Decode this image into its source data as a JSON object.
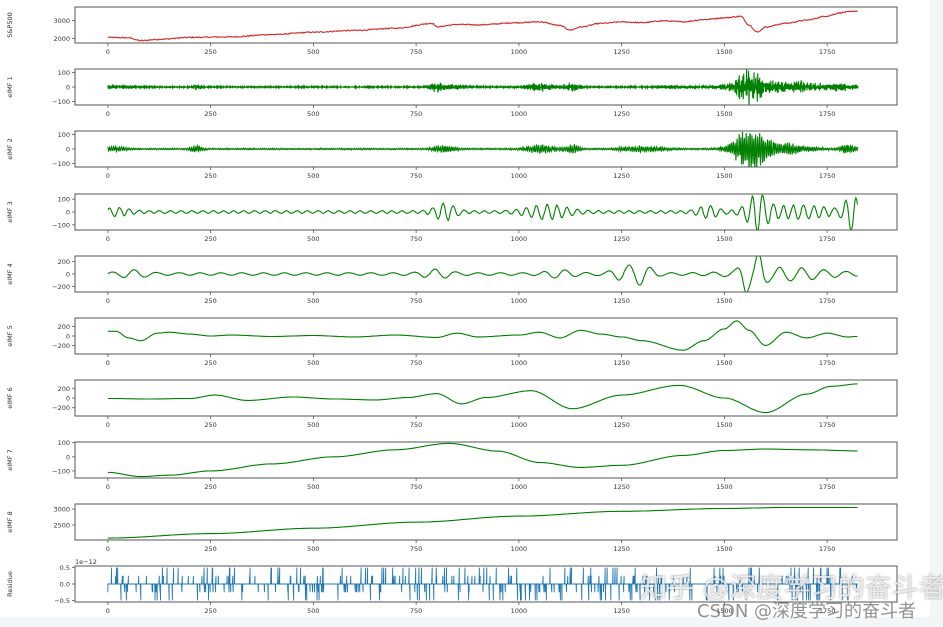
{
  "chart_data": [
    {
      "type": "line",
      "ylabel": "S&P500",
      "color": "#d62728",
      "xlim": [
        -80,
        1920
      ],
      "ylim": [
        1750,
        3750
      ],
      "yticks": [
        2000,
        3000
      ],
      "ytick_labels": [
        "2000",
        "3000"
      ],
      "xticks": [
        0,
        250,
        500,
        750,
        1000,
        1250,
        1500,
        1750
      ],
      "kind": "price",
      "x": [
        0,
        50,
        80,
        120,
        200,
        300,
        400,
        500,
        600,
        700,
        790,
        800,
        850,
        900,
        1000,
        1050,
        1100,
        1125,
        1150,
        1200,
        1250,
        1300,
        1350,
        1400,
        1450,
        1500,
        1540,
        1560,
        1580,
        1600,
        1650,
        1700,
        1750,
        1780,
        1800,
        1825
      ],
      "y": [
        2060,
        2040,
        1880,
        1950,
        2060,
        2090,
        2220,
        2350,
        2450,
        2570,
        2840,
        2650,
        2780,
        2760,
        2880,
        2930,
        2720,
        2470,
        2640,
        2840,
        2920,
        2880,
        2980,
        2930,
        3050,
        3150,
        3230,
        2750,
        2350,
        2640,
        2850,
        3020,
        3250,
        3420,
        3480,
        3530
      ]
    },
    {
      "type": "line",
      "ylabel": "eIMF 1",
      "color": "#008000",
      "xlim": [
        -80,
        1920
      ],
      "ylim": [
        -125,
        125
      ],
      "yticks": [
        -100,
        0,
        100
      ],
      "ytick_labels": [
        "−100",
        "0",
        "100"
      ],
      "xticks": [
        0,
        250,
        500,
        750,
        1000,
        1250,
        1500,
        1750
      ],
      "kind": "noise",
      "freq": 0.9,
      "base_amp": 6,
      "bursts": [
        [
          20,
          60,
          12
        ],
        [
          215,
          10,
          18
        ],
        [
          800,
          15,
          30
        ],
        [
          840,
          40,
          15
        ],
        [
          1050,
          40,
          30
        ],
        [
          1130,
          20,
          35
        ],
        [
          1380,
          40,
          12
        ],
        [
          1560,
          30,
          100
        ],
        [
          1600,
          100,
          40
        ],
        [
          1690,
          20,
          30
        ],
        [
          1770,
          60,
          25
        ]
      ]
    },
    {
      "type": "line",
      "ylabel": "eIMF 2",
      "color": "#008000",
      "xlim": [
        -80,
        1920
      ],
      "ylim": [
        -125,
        125
      ],
      "yticks": [
        -100,
        0,
        100
      ],
      "ytick_labels": [
        "−100",
        "0",
        "100"
      ],
      "xticks": [
        0,
        250,
        500,
        750,
        1000,
        1250,
        1500,
        1750
      ],
      "kind": "noise",
      "freq": 0.45,
      "base_amp": 6,
      "bursts": [
        [
          20,
          30,
          15
        ],
        [
          215,
          15,
          25
        ],
        [
          820,
          30,
          25
        ],
        [
          1050,
          40,
          30
        ],
        [
          1130,
          20,
          35
        ],
        [
          1300,
          60,
          20
        ],
        [
          1560,
          40,
          120
        ],
        [
          1620,
          80,
          50
        ],
        [
          1800,
          20,
          35
        ]
      ]
    },
    {
      "type": "line",
      "ylabel": "eIMF 3",
      "color": "#008000",
      "xlim": [
        -80,
        1920
      ],
      "ylim": [
        -140,
        140
      ],
      "yticks": [
        -100,
        0,
        100
      ],
      "ytick_labels": [
        "−100",
        "0",
        "100"
      ],
      "xticks": [
        0,
        250,
        500,
        750,
        1000,
        1250,
        1500,
        1750
      ],
      "kind": "wave",
      "freq": 0.25,
      "base_amp": 10,
      "bursts": [
        [
          20,
          40,
          25
        ],
        [
          820,
          30,
          60
        ],
        [
          1070,
          60,
          50
        ],
        [
          1460,
          30,
          40
        ],
        [
          1580,
          30,
          120
        ],
        [
          1680,
          100,
          45
        ],
        [
          1810,
          20,
          120
        ]
      ]
    },
    {
      "type": "line",
      "ylabel": "eIMF 4",
      "color": "#008000",
      "xlim": [
        -80,
        1920
      ],
      "ylim": [
        -290,
        290
      ],
      "yticks": [
        -200,
        0,
        200
      ],
      "ytick_labels": [
        "−200",
        "0",
        "200"
      ],
      "xticks": [
        0,
        250,
        500,
        750,
        1000,
        1250,
        1500,
        1750
      ],
      "kind": "wave",
      "freq": 0.12,
      "base_amp": 20,
      "bursts": [
        [
          60,
          40,
          50
        ],
        [
          800,
          40,
          60
        ],
        [
          1100,
          40,
          50
        ],
        [
          1260,
          40,
          90
        ],
        [
          1300,
          30,
          120
        ],
        [
          1550,
          15,
          250
        ],
        [
          1585,
          15,
          260
        ],
        [
          1650,
          120,
          90
        ]
      ]
    },
    {
      "type": "line",
      "ylabel": "eIMF 5",
      "color": "#008000",
      "xlim": [
        -80,
        1920
      ],
      "ylim": [
        -380,
        380
      ],
      "yticks": [
        -200,
        0,
        200
      ],
      "ytick_labels": [
        "−200",
        "0",
        "200"
      ],
      "xticks": [
        0,
        250,
        500,
        750,
        1000,
        1250,
        1500,
        1750
      ],
      "kind": "points",
      "x": [
        0,
        20,
        50,
        80,
        120,
        150,
        200,
        250,
        300,
        400,
        500,
        600,
        700,
        800,
        850,
        900,
        1000,
        1050,
        1100,
        1150,
        1200,
        1250,
        1300,
        1400,
        1450,
        1500,
        1530,
        1560,
        1600,
        1650,
        1700,
        1750,
        1800,
        1825
      ],
      "y": [
        100,
        100,
        -40,
        -100,
        60,
        80,
        40,
        0,
        20,
        -10,
        10,
        -20,
        20,
        -30,
        60,
        -20,
        20,
        80,
        -40,
        120,
        40,
        -20,
        -100,
        -300,
        -100,
        150,
        320,
        120,
        -200,
        80,
        -40,
        60,
        -20,
        -10
      ]
    },
    {
      "type": "line",
      "ylabel": "eIMF 6",
      "color": "#008000",
      "xlim": [
        -80,
        1920
      ],
      "ylim": [
        -370,
        370
      ],
      "yticks": [
        -200,
        0,
        200
      ],
      "ytick_labels": [
        "−200",
        "0",
        "200"
      ],
      "xticks": [
        0,
        250,
        500,
        750,
        1000,
        1250,
        1500,
        1750
      ],
      "kind": "points",
      "x": [
        0,
        100,
        200,
        260,
        340,
        450,
        550,
        650,
        730,
        800,
        860,
        920,
        1030,
        1130,
        1250,
        1390,
        1500,
        1600,
        1700,
        1760,
        1825
      ],
      "y": [
        -10,
        -20,
        -10,
        60,
        -50,
        20,
        -20,
        -40,
        10,
        90,
        -120,
        10,
        150,
        -220,
        60,
        260,
        0,
        -300,
        80,
        240,
        290
      ]
    },
    {
      "type": "line",
      "ylabel": "eIMF 7",
      "color": "#008000",
      "xlim": [
        -80,
        1920
      ],
      "ylim": [
        -150,
        105
      ],
      "yticks": [
        -100,
        0,
        100
      ],
      "ytick_labels": [
        "−100",
        "0",
        "100"
      ],
      "xticks": [
        0,
        250,
        500,
        750,
        1000,
        1250,
        1500,
        1750
      ],
      "kind": "points",
      "x": [
        0,
        80,
        150,
        250,
        400,
        550,
        700,
        830,
        950,
        1050,
        1150,
        1250,
        1400,
        1500,
        1600,
        1700,
        1825
      ],
      "y": [
        -110,
        -140,
        -130,
        -100,
        -50,
        0,
        50,
        95,
        40,
        -40,
        -75,
        -60,
        10,
        45,
        55,
        50,
        42
      ]
    },
    {
      "type": "line",
      "ylabel": "eIMF 8",
      "color": "#008000",
      "xlim": [
        -80,
        1920
      ],
      "ylim": [
        2030,
        3160
      ],
      "yticks": [
        2500,
        3000
      ],
      "ytick_labels": [
        "2500",
        "3000"
      ],
      "xticks": [
        0,
        250,
        500,
        750,
        1000,
        1250,
        1500,
        1750
      ],
      "kind": "points",
      "x": [
        0,
        250,
        500,
        750,
        1000,
        1250,
        1500,
        1650,
        1825
      ],
      "y": [
        2090,
        2230,
        2400,
        2590,
        2780,
        2930,
        3020,
        3050,
        3050
      ]
    },
    {
      "type": "line",
      "ylabel": "Residue",
      "color": "#1f77b4",
      "xlim": [
        -80,
        1920
      ],
      "ylim": [
        -0.55,
        0.55
      ],
      "yticks": [
        -0.5,
        0.0,
        0.5
      ],
      "ytick_labels": [
        "−0.5",
        "0.0",
        "0.5"
      ],
      "offset_text": "1e−12",
      "xticks": [
        0,
        250,
        500,
        750,
        1000,
        1250,
        1500,
        1750
      ],
      "kind": "residue",
      "levels": [
        -0.5,
        -0.25,
        0,
        0.25,
        0.5
      ]
    }
  ],
  "x_tick_labels": [
    "0",
    "250",
    "500",
    "750",
    "1000",
    "1250",
    "1500",
    "1750"
  ],
  "n_points": 1826,
  "watermarks": {
    "zhihu": "知乎 @深度学习的奋斗者",
    "csdn": "CSDN @深度学习的奋斗者"
  }
}
